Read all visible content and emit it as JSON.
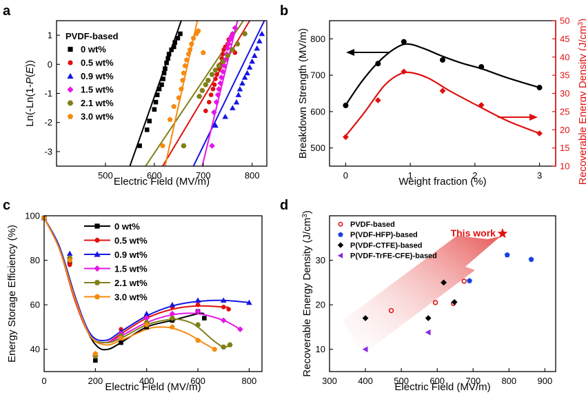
{
  "colors": {
    "c0": "#000000",
    "c05": "#e01010",
    "c09": "#1515e6",
    "c15": "#e616e6",
    "c21": "#808018",
    "c30": "#f58a10",
    "red": "#e01010",
    "blue": "#1a3fe0",
    "purple": "#8a2be2"
  },
  "chart_data": [
    {
      "id": "a",
      "panel_label": "a",
      "type": "scatter",
      "xlabel": "Electric Field (MV/m)",
      "ylabel": [
        "Ln(-Ln(1-",
        {
          "i": "P"
        },
        "(",
        {
          "i": "E"
        },
        "))"
      ],
      "ylabel_text": "Ln(-Ln(1-P(E))",
      "xlim": [
        400,
        830
      ],
      "ylim": [
        -3.5,
        1.5
      ],
      "xticks": [
        500,
        600,
        700,
        800
      ],
      "yticks": [
        -3,
        -2,
        -1,
        0,
        1
      ],
      "legend_title": "PVDF-based",
      "legend_position": "top-left",
      "series": [
        {
          "name": "0 wt%",
          "color": "#000000",
          "marker": "square",
          "x": [
            570,
            585,
            590,
            600,
            603,
            606,
            610,
            615,
            618,
            620,
            622,
            625,
            628,
            630,
            635,
            640,
            642,
            648,
            653
          ],
          "y": [
            -2.8,
            -2.25,
            -1.95,
            -1.55,
            -1.3,
            -1.05,
            -0.85,
            -0.7,
            -0.5,
            -0.3,
            -0.15,
            0.05,
            0.2,
            0.35,
            0.5,
            0.6,
            0.75,
            0.9,
            1.05
          ],
          "fit": [
            [
              550,
              -3.5
            ],
            [
              655,
              1.5
            ]
          ]
        },
        {
          "name": "0.5 wt%",
          "color": "#e01010",
          "marker": "circle",
          "x": [
            705,
            712,
            716,
            720,
            723,
            725,
            728,
            732,
            735,
            738,
            740,
            742,
            745,
            750,
            752,
            757,
            760,
            765
          ],
          "y": [
            -1.6,
            -1.3,
            -1.05,
            -0.85,
            -0.7,
            -0.5,
            -0.35,
            -0.15,
            0.0,
            0.2,
            0.35,
            0.5,
            0.6,
            0.7,
            0.85,
            0.95,
            1.05,
            0.4
          ],
          "fit": [
            [
              617,
              -3.5
            ],
            [
              795,
              1.5
            ]
          ]
        },
        {
          "name": "0.9 wt%",
          "color": "#1515e6",
          "marker": "triangle",
          "x": [
            725,
            745,
            760,
            768,
            772,
            775,
            780,
            785,
            790,
            795,
            800,
            805,
            810,
            815,
            820
          ],
          "y": [
            -2.1,
            -1.8,
            -1.5,
            -1.3,
            -1.05,
            -0.85,
            -0.65,
            -0.45,
            -0.3,
            -0.1,
            0.1,
            0.3,
            0.55,
            0.8,
            1.05
          ],
          "fit": [
            [
              680,
              -3.5
            ],
            [
              825,
              1.5
            ]
          ]
        },
        {
          "name": "1.5 wt%",
          "color": "#e616e6",
          "marker": "diamond",
          "x": [
            718,
            722,
            727,
            730,
            732,
            735,
            737,
            740,
            743,
            745,
            748,
            750,
            752,
            755,
            758,
            760,
            765
          ],
          "y": [
            -2.8,
            -1.65,
            -1.3,
            -1.05,
            -0.85,
            -0.65,
            -0.45,
            -0.25,
            -0.05,
            0.15,
            0.35,
            0.55,
            0.7,
            0.85,
            0.95,
            1.05,
            1.25
          ],
          "fit": [
            [
              698,
              -3.5
            ],
            [
              770,
              1.5
            ]
          ]
        },
        {
          "name": "2.1 wt%",
          "color": "#808018",
          "marker": "hexagon",
          "x": [
            660,
            692,
            698,
            705,
            710,
            718,
            725,
            732,
            740,
            750,
            760,
            770,
            785
          ],
          "y": [
            -2.8,
            -1.1,
            -0.9,
            -0.7,
            -0.55,
            -0.35,
            -0.2,
            -0.05,
            0.1,
            0.3,
            0.5,
            0.7,
            1.05
          ],
          "fit": [
            [
              582,
              -3.5
            ],
            [
              782,
              1.5
            ]
          ]
        },
        {
          "name": "3.0 wt%",
          "color": "#f58a10",
          "marker": "pentagon",
          "x": [
            617,
            632,
            640,
            650,
            655,
            658,
            660,
            663,
            666,
            670,
            673,
            676,
            680,
            686,
            690,
            700
          ],
          "y": [
            -2.8,
            -1.9,
            -1.45,
            -1.15,
            -0.85,
            -0.55,
            -0.3,
            -0.05,
            0.15,
            0.35,
            0.5,
            0.7,
            0.9,
            1.05,
            1.15,
            0.4
          ],
          "fit": [
            [
              622,
              -3.5
            ],
            [
              688,
              1.5
            ]
          ]
        }
      ]
    },
    {
      "id": "b",
      "panel_label": "b",
      "type": "line",
      "xlabel": "Weight fraction (%)",
      "ylabel": "Breakdown Strength (MV/m)",
      "ylabel_right": [
        "Recoverable Energy Density (J/cm",
        {
          "s": "3"
        },
        ")"
      ],
      "ylabel_right_text": "Recoverable Energy Density (J/cm3)",
      "xlim": [
        -0.25,
        3.25
      ],
      "ylim": [
        450,
        850
      ],
      "ylim_right": [
        10,
        50
      ],
      "xticks": [
        0,
        1,
        2,
        3
      ],
      "yticks": [
        500,
        600,
        700,
        800
      ],
      "yticks_right": [
        10,
        15,
        20,
        25,
        30,
        35,
        40,
        45,
        50
      ],
      "series": [
        {
          "name": "Breakdown Strength",
          "axis": "left",
          "color": "#000000",
          "marker": "circle",
          "x": [
            0,
            0.5,
            0.9,
            1.5,
            2.1,
            3.0
          ],
          "y": [
            617,
            732,
            792,
            742,
            723,
            666
          ],
          "fit": [
            [
              0,
              618
            ],
            [
              0.25,
              683
            ],
            [
              0.5,
              735
            ],
            [
              0.75,
              772
            ],
            [
              0.95,
              786
            ],
            [
              1.2,
              774
            ],
            [
              1.5,
              752
            ],
            [
              1.8,
              733
            ],
            [
              2.1,
              718
            ],
            [
              2.5,
              693
            ],
            [
              3.0,
              666
            ]
          ]
        },
        {
          "name": "Recoverable Energy Density",
          "axis": "right",
          "color": "#e01010",
          "marker": "diamond",
          "x": [
            0,
            0.5,
            0.9,
            1.5,
            2.1,
            3.0
          ],
          "y": [
            18.0,
            28.1,
            36.0,
            30.7,
            26.8,
            19.0
          ],
          "fit": [
            [
              0,
              18.3
            ],
            [
              0.3,
              25.0
            ],
            [
              0.6,
              32.2
            ],
            [
              0.85,
              35.4
            ],
            [
              1.05,
              35.6
            ],
            [
              1.3,
              34.0
            ],
            [
              1.6,
              30.8
            ],
            [
              2.0,
              27.0
            ],
            [
              2.5,
              22.5
            ],
            [
              3.0,
              19.0
            ]
          ]
        }
      ]
    },
    {
      "id": "c",
      "panel_label": "c",
      "type": "line",
      "xlabel": "Electric Field (MV/m)",
      "ylabel": "Energy Storage Efficiency (%)",
      "xlim": [
        0,
        850
      ],
      "ylim": [
        30,
        100
      ],
      "xticks": [
        0,
        200,
        400,
        600,
        800
      ],
      "yticks": [
        40,
        60,
        80,
        100
      ],
      "legend_position": "top-center",
      "series": [
        {
          "name": "0 wt%",
          "color": "#000000",
          "marker": "square",
          "x": [
            0,
            100,
            200,
            300,
            400,
            500,
            600,
            625
          ],
          "y": [
            99,
            79,
            35,
            43,
            50,
            53,
            57,
            54
          ],
          "fit": [
            [
              0,
              99
            ],
            [
              60,
              86
            ],
            [
              120,
              64
            ],
            [
              170,
              48
            ],
            [
              210,
              41
            ],
            [
              250,
              40
            ],
            [
              300,
              43
            ],
            [
              400,
              50
            ],
            [
              500,
              53
            ],
            [
              600,
              56
            ],
            [
              625,
              56
            ]
          ]
        },
        {
          "name": "0.5 wt%",
          "color": "#e01010",
          "marker": "circle",
          "x": [
            0,
            100,
            200,
            300,
            400,
            500,
            600,
            700,
            720
          ],
          "y": [
            99,
            78,
            38,
            49,
            55,
            59,
            60,
            59,
            58
          ],
          "fit": [
            [
              0,
              99
            ],
            [
              60,
              85
            ],
            [
              120,
              62
            ],
            [
              180,
              46
            ],
            [
              240,
              43
            ],
            [
              300,
              47
            ],
            [
              400,
              54
            ],
            [
              500,
              58
            ],
            [
              600,
              59.5
            ],
            [
              700,
              59
            ],
            [
              720,
              58.8
            ]
          ]
        },
        {
          "name": "0.9 wt%",
          "color": "#1515e6",
          "marker": "triangle",
          "x": [
            0,
            100,
            200,
            300,
            400,
            500,
            600,
            700,
            800
          ],
          "y": [
            99,
            83,
            38,
            48,
            56,
            60,
            62,
            62,
            61
          ],
          "fit": [
            [
              0,
              99
            ],
            [
              60,
              86
            ],
            [
              120,
              64
            ],
            [
              180,
              47
            ],
            [
              240,
              44
            ],
            [
              300,
              48
            ],
            [
              400,
              55
            ],
            [
              500,
              59.5
            ],
            [
              600,
              61.5
            ],
            [
              700,
              62
            ],
            [
              800,
              61
            ]
          ]
        },
        {
          "name": "1.5 wt%",
          "color": "#e616e6",
          "marker": "diamond",
          "x": [
            0,
            100,
            200,
            300,
            400,
            500,
            600,
            700,
            765
          ],
          "y": [
            99,
            81,
            37,
            47,
            54,
            56,
            57,
            53,
            49
          ],
          "fit": [
            [
              0,
              99
            ],
            [
              60,
              85
            ],
            [
              120,
              63
            ],
            [
              180,
              46
            ],
            [
              240,
              43
            ],
            [
              300,
              46
            ],
            [
              400,
              52
            ],
            [
              500,
              55.5
            ],
            [
              600,
              56
            ],
            [
              700,
              53
            ],
            [
              765,
              49
            ]
          ]
        },
        {
          "name": "2.1 wt%",
          "color": "#808018",
          "marker": "hexagon",
          "x": [
            0,
            100,
            200,
            300,
            400,
            500,
            600,
            700,
            725
          ],
          "y": [
            99,
            81,
            37,
            46,
            52,
            54,
            51,
            41,
            42
          ],
          "fit": [
            [
              0,
              99
            ],
            [
              60,
              85
            ],
            [
              120,
              63
            ],
            [
              180,
              46
            ],
            [
              240,
              43
            ],
            [
              300,
              45
            ],
            [
              400,
              51
            ],
            [
              500,
              53.5
            ],
            [
              560,
              52.5
            ],
            [
              600,
              50
            ],
            [
              660,
              44
            ],
            [
              700,
              41
            ],
            [
              725,
              42
            ]
          ]
        },
        {
          "name": "3.0 wt%",
          "color": "#f58a10",
          "marker": "pentagon",
          "x": [
            0,
            100,
            200,
            300,
            400,
            500,
            600,
            665
          ],
          "y": [
            99,
            80,
            38,
            45,
            51,
            50,
            44,
            40
          ],
          "fit": [
            [
              0,
              99
            ],
            [
              60,
              85
            ],
            [
              120,
              63
            ],
            [
              180,
              46
            ],
            [
              240,
              42
            ],
            [
              300,
              44
            ],
            [
              400,
              49
            ],
            [
              450,
              50
            ],
            [
              500,
              49.5
            ],
            [
              560,
              47
            ],
            [
              620,
              43
            ],
            [
              665,
              40
            ]
          ]
        }
      ]
    },
    {
      "id": "d",
      "panel_label": "d",
      "type": "scatter",
      "xlabel": "Electric Field (MV/m)",
      "ylabel": [
        "Recoverable Energy Density (J/cm",
        {
          "s": "3"
        },
        ")"
      ],
      "ylabel_text": "Recoverable Energy Density (J/cm3)",
      "xlim": [
        300,
        930
      ],
      "ylim": [
        5,
        40
      ],
      "xticks": [
        300,
        400,
        500,
        600,
        700,
        800,
        900
      ],
      "yticks": [
        10,
        20,
        30
      ],
      "legend_position": "top-left",
      "annotation": "This work",
      "series": [
        {
          "name": "PVDF-based",
          "color": "#e01010",
          "marker": "open-circle",
          "x": [
            472,
            595,
            645,
            675
          ],
          "y": [
            18.7,
            20.5,
            20.3,
            25.3
          ]
        },
        {
          "name": "P(VDF-HFP)-based",
          "color": "#1a3fe0",
          "marker": "pentagon",
          "x": [
            690,
            795,
            862
          ],
          "y": [
            25.4,
            31.2,
            30.2
          ]
        },
        {
          "name": "P(VDF-CTFE)-based",
          "color": "#000000",
          "marker": "diamond",
          "x": [
            400,
            575,
            618,
            648
          ],
          "y": [
            17.0,
            17.0,
            25.0,
            20.6
          ]
        },
        {
          "name": "P(VDF-TrFE-CFE)-based",
          "color": "#8a2be2",
          "marker": "left-triangle",
          "x": [
            400,
            575
          ],
          "y": [
            10.0,
            13.8
          ]
        },
        {
          "name": "This work",
          "color": "#e01010",
          "marker": "star",
          "x": [
            782
          ],
          "y": [
            36.0
          ]
        }
      ]
    }
  ]
}
